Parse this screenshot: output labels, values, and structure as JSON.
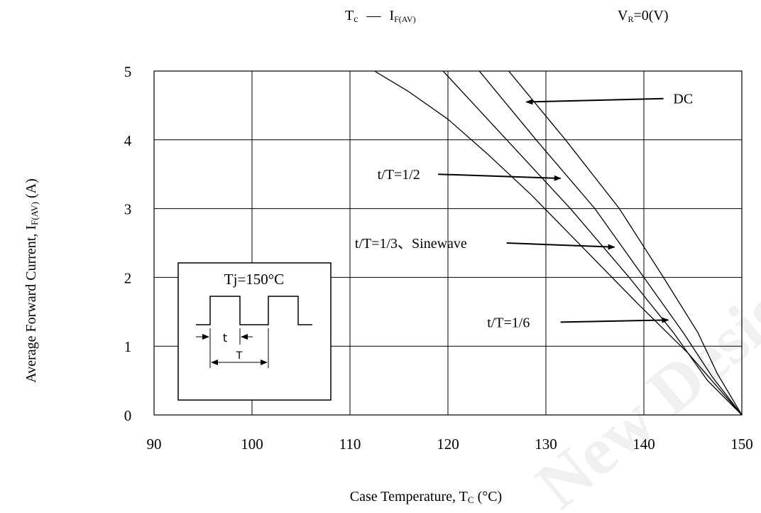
{
  "chart_data": {
    "type": "line",
    "title_main": "T",
    "title_main_sub": "c",
    "title_dash": "—",
    "title_i": "I",
    "title_i_sub": "F(AV)",
    "condition_v": "V",
    "condition_v_sub": "R",
    "condition_value": "=0(V)",
    "xlabel_prefix": "Case Temperature, T",
    "xlabel_sub": "C",
    "xlabel_suffix": " (°C)",
    "ylabel_prefix": "Average Forward Current, I",
    "ylabel_sub": "F(AV)",
    "ylabel_suffix": " (A)",
    "xlim": [
      90,
      150
    ],
    "ylim": [
      0,
      5
    ],
    "x_ticks": [
      "90",
      "100",
      "110",
      "120",
      "130",
      "140",
      "150"
    ],
    "y_ticks": [
      "0",
      "1",
      "2",
      "3",
      "4",
      "5"
    ],
    "grid": true,
    "series": [
      {
        "name": "DC",
        "points": [
          [
            126.2,
            5.0
          ],
          [
            132.0,
            4.0
          ],
          [
            137.5,
            3.0
          ],
          [
            142.0,
            2.0
          ],
          [
            145.5,
            1.2
          ],
          [
            147.5,
            0.6
          ],
          [
            150.0,
            0.0
          ]
        ]
      },
      {
        "name": "t/T=1/2",
        "points": [
          [
            123.2,
            5.0
          ],
          [
            129.0,
            4.0
          ],
          [
            135.0,
            3.0
          ],
          [
            140.0,
            2.0
          ],
          [
            144.0,
            1.2
          ],
          [
            147.0,
            0.55
          ],
          [
            150.0,
            0.0
          ]
        ]
      },
      {
        "name": "t/T=1/3、Sinewave",
        "points": [
          [
            119.5,
            5.0
          ],
          [
            126.0,
            4.0
          ],
          [
            132.5,
            3.0
          ],
          [
            138.5,
            2.0
          ],
          [
            143.0,
            1.2
          ],
          [
            146.5,
            0.5
          ],
          [
            150.0,
            0.0
          ]
        ]
      },
      {
        "name": "t/T=1/6",
        "points": [
          [
            112.5,
            5.0
          ],
          [
            116.0,
            4.7
          ],
          [
            120.0,
            4.3
          ],
          [
            124.0,
            3.8
          ],
          [
            128.5,
            3.2
          ],
          [
            134.0,
            2.4
          ],
          [
            139.5,
            1.6
          ],
          [
            144.5,
            0.9
          ],
          [
            150.0,
            0.0
          ]
        ]
      }
    ],
    "annotations": [
      {
        "text": "DC",
        "label_x": 143.0,
        "label_y": 4.6,
        "line_start": [
          142.0,
          4.6
        ],
        "arrow_to": [
          128.0,
          4.55
        ]
      },
      {
        "text": "t/T=1/2",
        "label_x": 112.8,
        "label_y": 3.5,
        "line_start": [
          119.0,
          3.5
        ],
        "arrow_to": [
          131.5,
          3.44
        ]
      },
      {
        "text": "t/T=1/3、Sinewave",
        "label_x": 110.5,
        "label_y": 2.5,
        "line_start": [
          126.0,
          2.5
        ],
        "arrow_to": [
          137.0,
          2.44
        ]
      },
      {
        "text": "t/T=1/6",
        "label_x": 124.0,
        "label_y": 1.35,
        "line_start": [
          131.5,
          1.35
        ],
        "arrow_to": [
          142.5,
          1.38
        ]
      }
    ],
    "inset": {
      "title": "Tj=150°C",
      "label_t": "t",
      "label_T": "T"
    },
    "watermark": "New Designs"
  }
}
